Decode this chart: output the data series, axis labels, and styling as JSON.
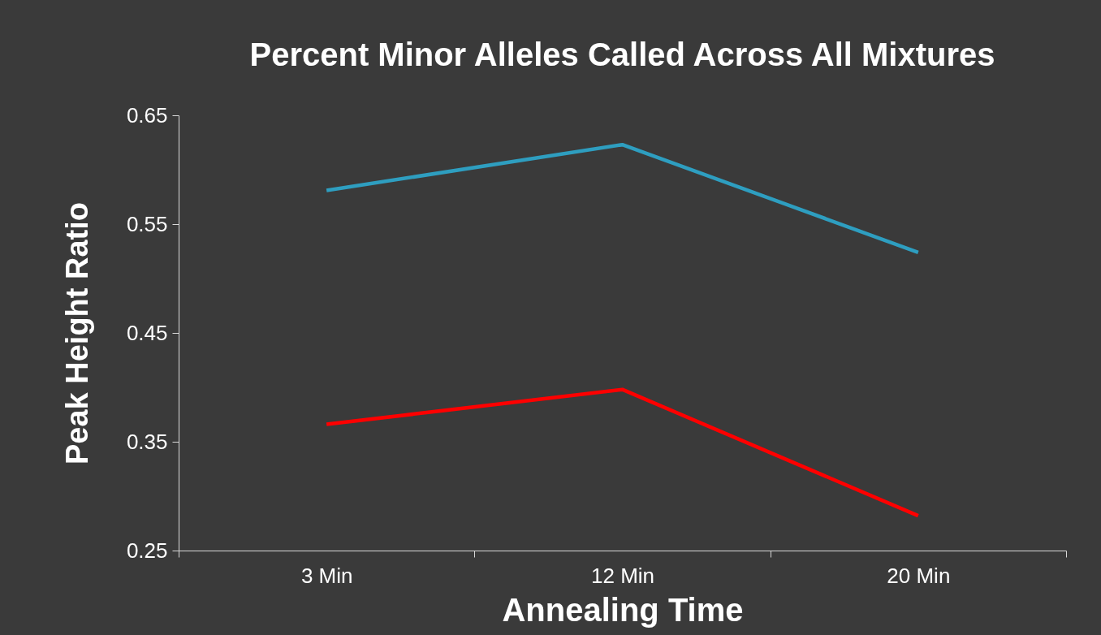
{
  "chart_data": {
    "type": "line",
    "title": "Percent Minor Alleles Called Across All Mixtures",
    "xlabel": "Annealing Time",
    "ylabel": "Peak Height  Ratio",
    "categories": [
      "3 Min",
      "12 Min",
      "20 Min"
    ],
    "series": [
      {
        "color": "#2e9ec0",
        "values": [
          0.581,
          0.623,
          0.524
        ]
      },
      {
        "color": "#ff0000",
        "values": [
          0.366,
          0.398,
          0.282
        ]
      }
    ],
    "ylim": [
      0.25,
      0.65
    ],
    "yticks": [
      0.25,
      0.35,
      0.45,
      0.55,
      0.65
    ],
    "grid": false,
    "marker": "none",
    "line_style": "solid"
  }
}
